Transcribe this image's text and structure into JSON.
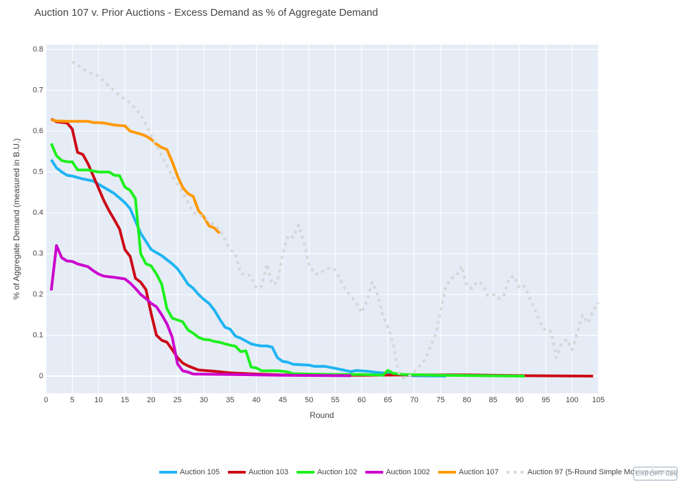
{
  "chart_data": {
    "type": "line",
    "title": "Auction 107 v. Prior Auctions - Excess Demand as % of Aggregate Demand",
    "xlabel": "Round",
    "ylabel": "% of Aggregate Demand (measured in B.U.)",
    "xlim": [
      0,
      105
    ],
    "ylim": [
      -0.042,
      0.812
    ],
    "xticks": [
      0,
      5,
      10,
      15,
      20,
      25,
      30,
      35,
      40,
      45,
      50,
      55,
      60,
      65,
      70,
      75,
      80,
      85,
      90,
      95,
      100,
      105
    ],
    "yticks": [
      0,
      0.1,
      0.2,
      0.3,
      0.4,
      0.5,
      0.6,
      0.7,
      0.8
    ],
    "grid": true,
    "legend": "bottom",
    "series": [
      {
        "name": "Auction 105",
        "color": "#1fb4f2",
        "dash": false,
        "x": [
          1,
          2,
          3,
          4,
          5,
          7,
          9,
          10,
          12,
          13,
          15,
          16,
          17,
          18,
          19,
          20,
          22,
          23,
          24,
          25,
          26,
          27,
          28,
          29,
          30,
          31,
          32,
          33,
          34,
          35,
          36,
          37,
          38,
          39,
          40,
          41,
          42,
          43,
          44,
          45,
          46,
          47,
          50,
          51,
          53,
          55,
          58,
          59,
          61,
          63,
          65,
          68,
          70,
          76
        ],
        "values": [
          0.53,
          0.51,
          0.5,
          0.492,
          0.49,
          0.483,
          0.478,
          0.47,
          0.455,
          0.447,
          0.425,
          0.41,
          0.38,
          0.35,
          0.33,
          0.31,
          0.295,
          0.285,
          0.275,
          0.263,
          0.245,
          0.225,
          0.215,
          0.2,
          0.188,
          0.178,
          0.162,
          0.14,
          0.12,
          0.115,
          0.098,
          0.093,
          0.086,
          0.079,
          0.076,
          0.074,
          0.074,
          0.071,
          0.045,
          0.036,
          0.034,
          0.029,
          0.027,
          0.024,
          0.024,
          0.019,
          0.011,
          0.014,
          0.012,
          0.009,
          0.007,
          0.003,
          0.001,
          0
        ]
      },
      {
        "name": "Auction 103",
        "color": "#cc0a17",
        "dash": false,
        "x": [
          1,
          2,
          4,
          5,
          6,
          7,
          8,
          9,
          10,
          11,
          12,
          13,
          14,
          15,
          16,
          17,
          18,
          19,
          20,
          21,
          22,
          23,
          24,
          25,
          26,
          27,
          28,
          29,
          32,
          35,
          40,
          45,
          50,
          60,
          70,
          80,
          90,
          104
        ],
        "values": [
          0.63,
          0.623,
          0.62,
          0.605,
          0.548,
          0.543,
          0.52,
          0.49,
          0.46,
          0.43,
          0.405,
          0.383,
          0.36,
          0.31,
          0.293,
          0.24,
          0.23,
          0.212,
          0.153,
          0.1,
          0.088,
          0.083,
          0.065,
          0.045,
          0.032,
          0.025,
          0.02,
          0.015,
          0.012,
          0.008,
          0.005,
          0.003,
          0.002,
          0.002,
          0.003,
          0.003,
          0.001,
          0
        ]
      },
      {
        "name": "Auction 102",
        "color": "#1ef01e",
        "dash": false,
        "x": [
          1,
          2,
          3,
          4,
          5,
          6,
          8,
          10,
          12,
          13,
          14,
          15,
          16,
          17,
          18,
          19,
          20,
          21,
          22,
          23,
          24,
          26,
          27,
          28,
          29,
          30,
          31,
          32,
          33,
          34,
          35,
          36,
          37,
          38,
          39,
          40,
          41,
          44,
          45,
          46,
          47,
          50,
          55,
          60,
          63,
          64,
          65,
          66,
          68,
          75,
          91
        ],
        "values": [
          0.57,
          0.54,
          0.528,
          0.525,
          0.525,
          0.505,
          0.505,
          0.5,
          0.5,
          0.492,
          0.491,
          0.463,
          0.455,
          0.435,
          0.3,
          0.275,
          0.27,
          0.25,
          0.225,
          0.165,
          0.142,
          0.133,
          0.113,
          0.105,
          0.095,
          0.09,
          0.089,
          0.085,
          0.083,
          0.079,
          0.076,
          0.073,
          0.06,
          0.062,
          0.022,
          0.02,
          0.013,
          0.013,
          0.012,
          0.01,
          0.006,
          0.005,
          0.004,
          0.004,
          0.003,
          0.002,
          0.014,
          0.007,
          0.004,
          0.002,
          0
        ]
      },
      {
        "name": "Auction 1002",
        "color": "#cc00cc",
        "dash": false,
        "x": [
          1,
          2,
          3,
          4,
          5,
          6,
          8,
          9,
          10,
          11,
          13,
          15,
          16,
          17,
          18,
          19,
          20,
          21,
          22,
          23,
          24,
          25,
          26,
          27,
          28,
          35,
          45,
          58
        ],
        "values": [
          0.21,
          0.32,
          0.29,
          0.282,
          0.281,
          0.275,
          0.268,
          0.258,
          0.25,
          0.245,
          0.242,
          0.238,
          0.228,
          0.215,
          0.2,
          0.19,
          0.178,
          0.17,
          0.15,
          0.128,
          0.095,
          0.03,
          0.013,
          0.01,
          0.005,
          0.004,
          0.002,
          0.001
        ]
      },
      {
        "name": "Auction 107",
        "color": "#ff9900",
        "dash": false,
        "x": [
          1,
          2,
          4,
          8,
          9,
          10,
          11,
          13,
          15,
          16,
          18,
          19,
          20,
          21,
          22,
          23,
          24,
          25,
          26,
          27,
          28,
          29,
          30,
          31,
          32,
          33
        ],
        "values": [
          0.628,
          0.625,
          0.624,
          0.624,
          0.621,
          0.621,
          0.62,
          0.615,
          0.613,
          0.6,
          0.593,
          0.588,
          0.58,
          0.568,
          0.56,
          0.555,
          0.525,
          0.49,
          0.462,
          0.447,
          0.44,
          0.405,
          0.39,
          0.368,
          0.363,
          0.35
        ]
      },
      {
        "name": "Auction 97 (5-Round Simple Moving Average)",
        "color": "#d6d6d6",
        "dash": true,
        "x": [
          5,
          6,
          7,
          8,
          10,
          12,
          14,
          16,
          18,
          20,
          22,
          24,
          26,
          28,
          30,
          32,
          33,
          35,
          36,
          37,
          38,
          39,
          40,
          41,
          42,
          43,
          44,
          45,
          46,
          47,
          48,
          49,
          50,
          51,
          52,
          53,
          54,
          55,
          57,
          59,
          60,
          61,
          62,
          63,
          64,
          65,
          66,
          67,
          68,
          69,
          70,
          72,
          74,
          76,
          77,
          78,
          79,
          80,
          81,
          82,
          83,
          84,
          85,
          86,
          87,
          88,
          89,
          90,
          91,
          92,
          94,
          95,
          96,
          97,
          98,
          99,
          100,
          102,
          103,
          104,
          105
        ],
        "values": [
          0.77,
          0.763,
          0.752,
          0.745,
          0.735,
          0.71,
          0.688,
          0.67,
          0.64,
          0.59,
          0.54,
          0.49,
          0.45,
          0.4,
          0.39,
          0.37,
          0.36,
          0.31,
          0.3,
          0.25,
          0.25,
          0.245,
          0.215,
          0.22,
          0.275,
          0.225,
          0.23,
          0.3,
          0.345,
          0.34,
          0.37,
          0.33,
          0.275,
          0.25,
          0.25,
          0.262,
          0.265,
          0.26,
          0.21,
          0.18,
          0.155,
          0.185,
          0.23,
          0.2,
          0.15,
          0.12,
          0.08,
          0.01,
          -0.005,
          0,
          0.01,
          0.04,
          0.1,
          0.22,
          0.24,
          0.245,
          0.27,
          0.22,
          0.215,
          0.232,
          0.225,
          0.197,
          0.2,
          0.19,
          0.195,
          0.24,
          0.245,
          0.215,
          0.22,
          0.19,
          0.13,
          0.11,
          0.11,
          0.045,
          0.08,
          0.09,
          0.065,
          0.15,
          0.13,
          0.16,
          0.18
        ]
      }
    ]
  },
  "export_button": "EXPORT CHART"
}
